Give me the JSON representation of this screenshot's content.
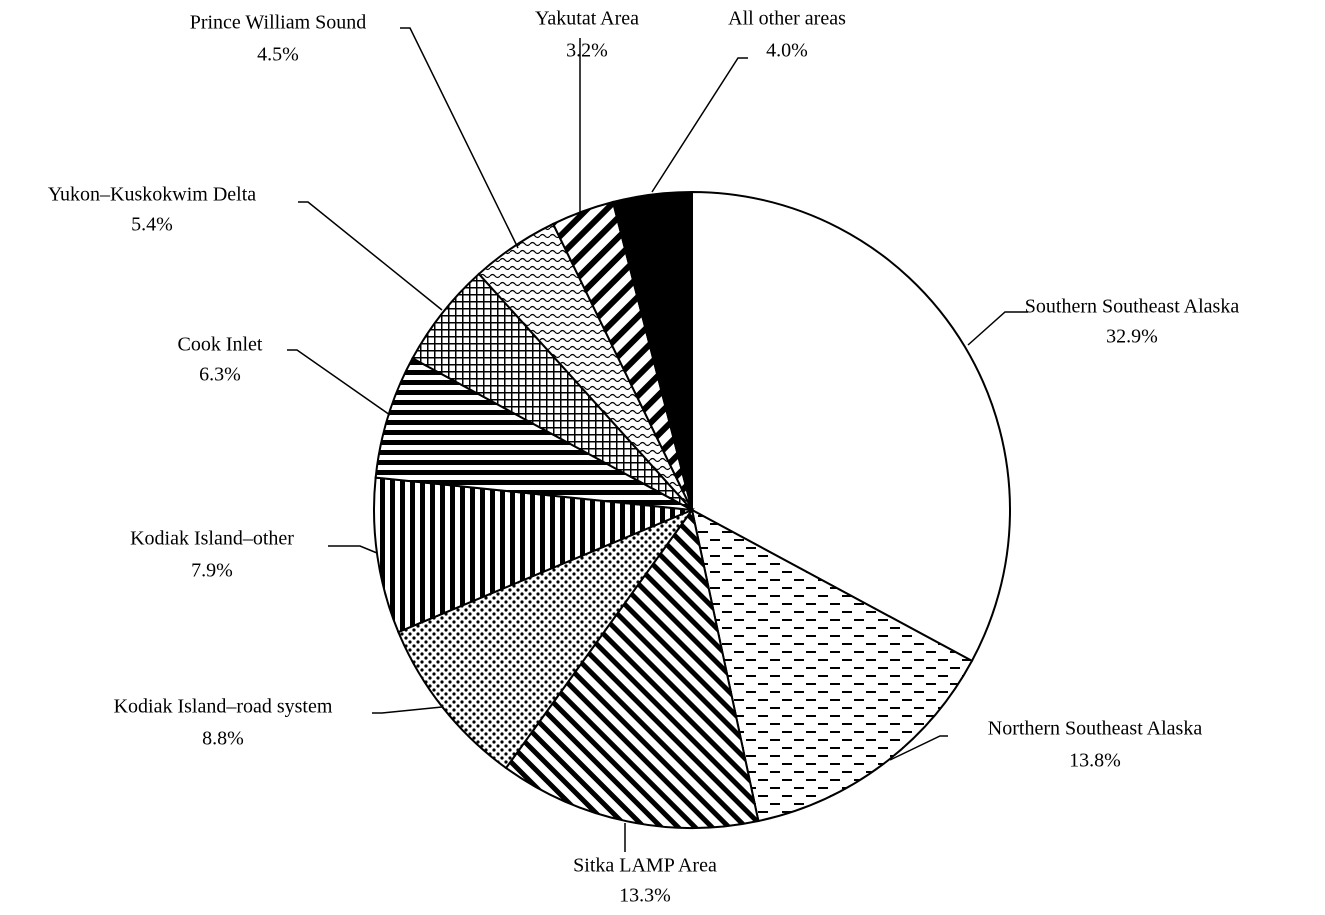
{
  "chart_data": {
    "type": "pie",
    "categories": [
      "Southern Southeast Alaska",
      "Northern Southeast Alaska",
      "Sitka LAMP Area",
      "Kodiak Island–road system",
      "Kodiak Island–other",
      "Cook Inlet",
      "Yukon–Kuskokwim Delta",
      "Prince William Sound",
      "Yakutat Area",
      "All other areas"
    ],
    "values": [
      32.9,
      13.8,
      13.3,
      8.8,
      7.9,
      6.3,
      5.4,
      4.5,
      3.2,
      4.0
    ],
    "value_labels": [
      "32.9%",
      "13.8%",
      "13.3%",
      "8.8%",
      "7.9%",
      "6.3%",
      "5.4%",
      "4.5%",
      "3.2%",
      "4.0%"
    ]
  }
}
